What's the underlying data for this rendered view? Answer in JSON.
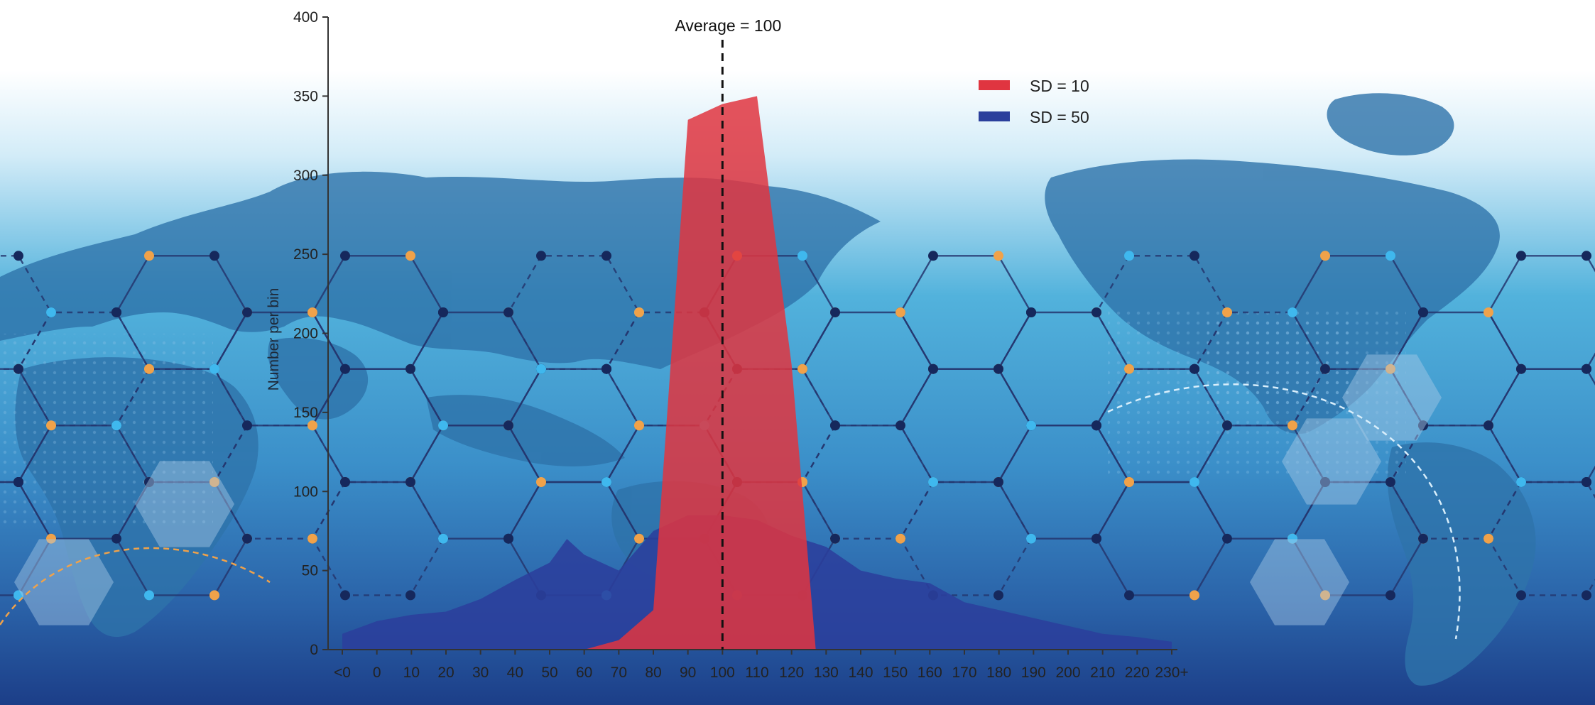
{
  "chart_data": {
    "type": "area",
    "ylabel": "Number per bin",
    "ylim": [
      0,
      400
    ],
    "yticks": [
      0,
      50,
      100,
      150,
      200,
      250,
      300,
      350,
      400
    ],
    "xticks": [
      "<0",
      "0",
      "10",
      "20",
      "30",
      "40",
      "50",
      "60",
      "70",
      "80",
      "90",
      "100",
      "110",
      "120",
      "130",
      "140",
      "150",
      "160",
      "170",
      "180",
      "190",
      "200",
      "210",
      "220",
      "230+"
    ],
    "grid": false,
    "legend_position": "top-right",
    "annotation": {
      "text": "Average = 100",
      "x": 100
    },
    "series": [
      {
        "name": "SD = 50",
        "color": "#2b3f9c",
        "points": [
          [
            -10,
            10
          ],
          [
            0,
            18
          ],
          [
            10,
            22
          ],
          [
            20,
            24
          ],
          [
            30,
            32
          ],
          [
            40,
            44
          ],
          [
            50,
            55
          ],
          [
            55,
            70
          ],
          [
            60,
            60
          ],
          [
            70,
            50
          ],
          [
            80,
            75
          ],
          [
            90,
            85
          ],
          [
            100,
            85
          ],
          [
            110,
            82
          ],
          [
            120,
            72
          ],
          [
            130,
            65
          ],
          [
            140,
            50
          ],
          [
            150,
            45
          ],
          [
            160,
            42
          ],
          [
            170,
            30
          ],
          [
            180,
            25
          ],
          [
            190,
            20
          ],
          [
            200,
            15
          ],
          [
            210,
            10
          ],
          [
            220,
            8
          ],
          [
            230,
            5
          ]
        ]
      },
      {
        "name": "SD = 10",
        "color": "#e03540",
        "points": [
          [
            60,
            0
          ],
          [
            70,
            6
          ],
          [
            80,
            25
          ],
          [
            90,
            335
          ],
          [
            100,
            345
          ],
          [
            110,
            350
          ],
          [
            120,
            180
          ],
          [
            127,
            0
          ]
        ]
      }
    ]
  },
  "background": {
    "theme": "world-map-hexagon-network",
    "sky_top": "#ffffff",
    "sea": "#4aaed6",
    "deep": "#1c4a8c",
    "land": "#2d74a8",
    "node_dark": "#16285c",
    "node_orange": "#f0a24a",
    "node_cyan": "#3fb8ee"
  }
}
